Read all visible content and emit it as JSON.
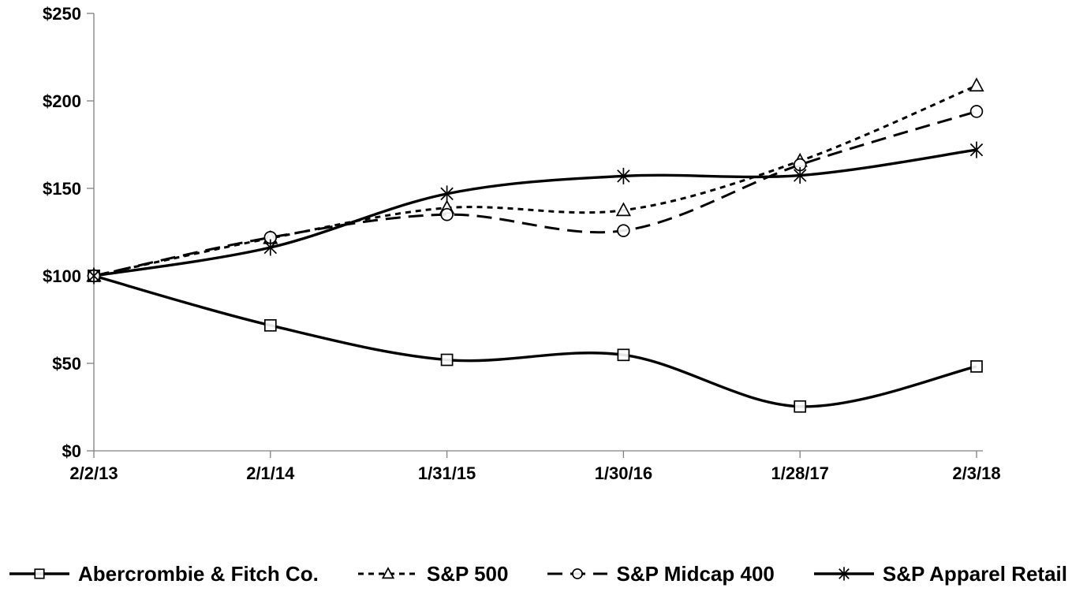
{
  "chart_data": {
    "type": "line",
    "title": "",
    "x_tick_labels": [
      "2/2/13",
      "2/1/14",
      "1/31/15",
      "1/30/16",
      "1/28/17",
      "2/3/18"
    ],
    "y_tick_labels": [
      "$0",
      "$50",
      "$100",
      "$150",
      "$200",
      "$250"
    ],
    "ylim": [
      0,
      250
    ],
    "y_tick_step": 50,
    "grid": false,
    "legend_position": "bottom",
    "series": [
      {
        "name": "Abercrombie & Fitch Co.",
        "line_style": "solid",
        "marker": "square",
        "values": [
          100.0,
          71.7,
          52.01,
          54.82,
          25.33,
          48.23
        ]
      },
      {
        "name": "S&P 500",
        "line_style": "short-dash",
        "marker": "triangle",
        "values": [
          100.0,
          121.52,
          138.84,
          137.5,
          165.65,
          208.73
        ]
      },
      {
        "name": "S&P Midcap 400",
        "line_style": "long-dash",
        "marker": "circle",
        "values": [
          100.0,
          121.95,
          135.03,
          125.85,
          163.49,
          193.95
        ]
      },
      {
        "name": "S&P Apparel Retail",
        "line_style": "solid",
        "marker": "asterisk",
        "values": [
          100.0,
          116.21,
          146.9,
          157.04,
          157.4,
          172.02
        ]
      }
    ],
    "colors": {
      "series_line": "#000000",
      "marker_fill": "#ffffff",
      "axis_line": "#808080",
      "text": "#000000",
      "background": "#ffffff"
    }
  }
}
